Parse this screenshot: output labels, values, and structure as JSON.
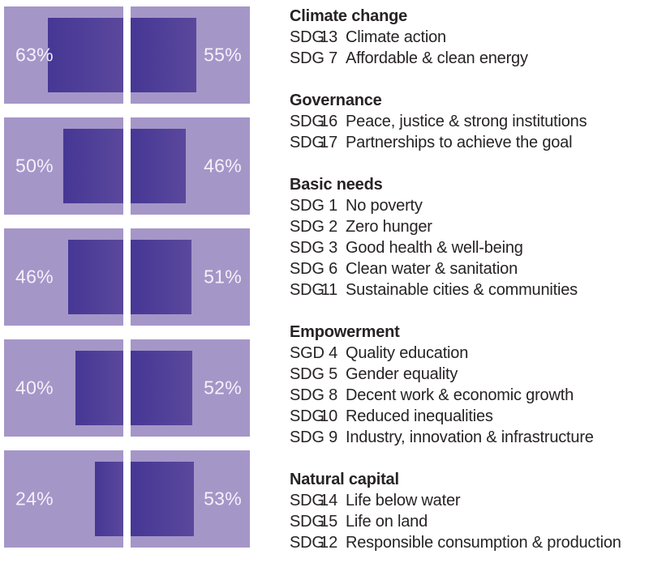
{
  "chart_data": {
    "type": "bar",
    "subtype": "paired-horizontal-butterfly",
    "unit": "%",
    "axis_max": 100,
    "grid": false,
    "legend_position": "right-text-column",
    "categories": [
      "Climate change",
      "Governance",
      "Basic needs",
      "Empowerment",
      "Natural capital"
    ],
    "series": [
      {
        "name": "left",
        "values": [
          63,
          50,
          46,
          40,
          24
        ]
      },
      {
        "name": "right",
        "values": [
          55,
          46,
          51,
          52,
          53
        ]
      }
    ],
    "rows": [
      {
        "category": "Climate change",
        "left_value": 63,
        "left_label": "63%",
        "right_value": 55,
        "right_label": "55%"
      },
      {
        "category": "Governance",
        "left_value": 50,
        "left_label": "50%",
        "right_value": 46,
        "right_label": "46%"
      },
      {
        "category": "Basic needs",
        "left_value": 46,
        "left_label": "46%",
        "right_value": 51,
        "right_label": "51%"
      },
      {
        "category": "Empowerment",
        "left_value": 40,
        "left_label": "40%",
        "right_value": 52,
        "right_label": "52%"
      },
      {
        "category": "Natural capital",
        "left_value": 24,
        "left_label": "24%",
        "right_value": 53,
        "right_label": "53%"
      }
    ]
  },
  "legend": {
    "sections": [
      {
        "heading": "Climate change",
        "items": [
          {
            "code": "SDG",
            "num": "13",
            "name": "Climate action"
          },
          {
            "code": "SDG",
            "num": "7",
            "name": "Affordable & clean energy"
          }
        ]
      },
      {
        "heading": "Governance",
        "items": [
          {
            "code": "SDG",
            "num": "16",
            "name": "Peace, justice & strong institutions"
          },
          {
            "code": "SDG",
            "num": "17",
            "name": "Partnerships to achieve the goal"
          }
        ]
      },
      {
        "heading": "Basic needs",
        "items": [
          {
            "code": "SDG",
            "num": "1",
            "name": "No poverty"
          },
          {
            "code": "SDG",
            "num": "2",
            "name": "Zero hunger"
          },
          {
            "code": "SDG",
            "num": "3",
            "name": "Good health & well-being"
          },
          {
            "code": "SDG",
            "num": "6",
            "name": "Clean water & sanitation"
          },
          {
            "code": "SDG",
            "num": "11",
            "name": "Sustainable cities & communities"
          }
        ]
      },
      {
        "heading": "Empowerment",
        "items": [
          {
            "code": "SGD",
            "num": "4",
            "name": "Quality education"
          },
          {
            "code": "SDG",
            "num": "5",
            "name": "Gender equality"
          },
          {
            "code": "SDG",
            "num": "8",
            "name": "Decent work & economic growth"
          },
          {
            "code": "SDG",
            "num": "10",
            "name": "Reduced inequalities"
          },
          {
            "code": "SDG",
            "num": "9",
            "name": "Industry, innovation & infrastructure"
          }
        ]
      },
      {
        "heading": "Natural capital",
        "items": [
          {
            "code": "SDG",
            "num": "14",
            "name": "Life below water"
          },
          {
            "code": "SDG",
            "num": "15",
            "name": "Life on land"
          },
          {
            "code": "SDG",
            "num": "12",
            "name": "Responsible consumption & production"
          }
        ]
      }
    ]
  },
  "colors": {
    "background": "#ffffff",
    "panel": "#a596c8",
    "bar_gradient_start": "#463795",
    "bar_gradient_end": "#5a489c",
    "percent_text": "#f4f1f9",
    "legend_text": "#272324"
  }
}
